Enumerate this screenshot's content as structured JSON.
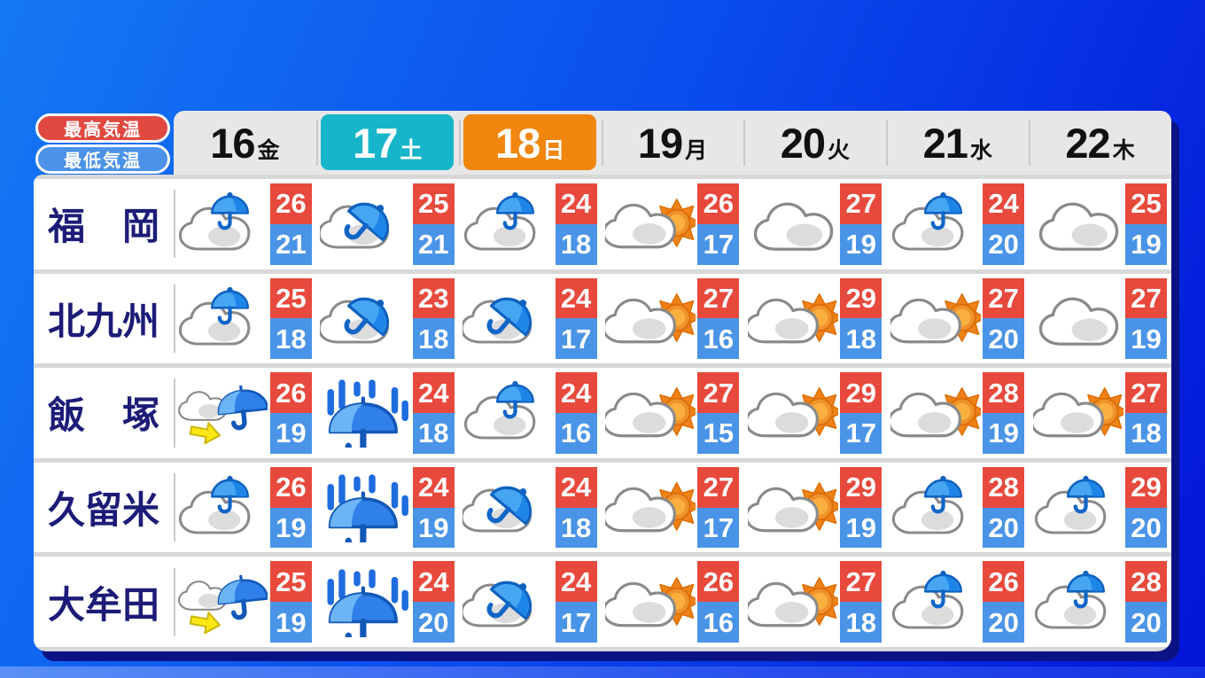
{
  "legend": {
    "high_label": "最高気温",
    "low_label": "最低気温"
  },
  "colors": {
    "high_temp_bg": "#e8493d",
    "low_temp_bg": "#4a94e8",
    "saturday_highlight": "#17b5c9",
    "sunday_highlight": "#f0860e",
    "city_text": "#1c1c78",
    "header_bg": "#e7e7e7",
    "background_top_left": "#1478f4",
    "background_right": "#0314d8",
    "card_shadow": "#0b1286"
  },
  "chart_data": {
    "type": "table",
    "columns": [
      {
        "date": "16",
        "weekday": "金",
        "highlight": "none"
      },
      {
        "date": "17",
        "weekday": "土",
        "highlight": "teal"
      },
      {
        "date": "18",
        "weekday": "日",
        "highlight": "orange"
      },
      {
        "date": "19",
        "weekday": "月",
        "highlight": "none"
      },
      {
        "date": "20",
        "weekday": "火",
        "highlight": "none"
      },
      {
        "date": "21",
        "weekday": "水",
        "highlight": "none"
      },
      {
        "date": "22",
        "weekday": "木",
        "highlight": "none"
      }
    ],
    "icon_names": {
      "cloud": "cloudy",
      "cloud-sun": "cloudy with sunny breaks",
      "cloud-umbrella": "cloudy with occasional rain",
      "cloud-umbrella-tilt": "cloudy with rain",
      "rain": "rain",
      "cloud-then-rain": "cloudy then rain"
    },
    "rows": [
      {
        "city": "福　岡",
        "cells": [
          {
            "icon": "cloud-umbrella",
            "high": 26,
            "low": 21
          },
          {
            "icon": "cloud-umbrella-tilt",
            "high": 25,
            "low": 21
          },
          {
            "icon": "cloud-umbrella",
            "high": 24,
            "low": 18
          },
          {
            "icon": "cloud-sun",
            "high": 26,
            "low": 17
          },
          {
            "icon": "cloud",
            "high": 27,
            "low": 19
          },
          {
            "icon": "cloud-umbrella",
            "high": 24,
            "low": 20
          },
          {
            "icon": "cloud",
            "high": 25,
            "low": 19
          }
        ]
      },
      {
        "city": "北九州",
        "cells": [
          {
            "icon": "cloud-umbrella",
            "high": 25,
            "low": 18
          },
          {
            "icon": "cloud-umbrella-tilt",
            "high": 23,
            "low": 18
          },
          {
            "icon": "cloud-umbrella-tilt",
            "high": 24,
            "low": 17
          },
          {
            "icon": "cloud-sun",
            "high": 27,
            "low": 16
          },
          {
            "icon": "cloud-sun",
            "high": 29,
            "low": 18
          },
          {
            "icon": "cloud-sun",
            "high": 27,
            "low": 20
          },
          {
            "icon": "cloud",
            "high": 27,
            "low": 19
          }
        ]
      },
      {
        "city": "飯　塚",
        "cells": [
          {
            "icon": "cloud-then-rain",
            "high": 26,
            "low": 19
          },
          {
            "icon": "rain",
            "high": 24,
            "low": 18
          },
          {
            "icon": "cloud-umbrella",
            "high": 24,
            "low": 16
          },
          {
            "icon": "cloud-sun",
            "high": 27,
            "low": 15
          },
          {
            "icon": "cloud-sun",
            "high": 29,
            "low": 17
          },
          {
            "icon": "cloud-sun",
            "high": 28,
            "low": 19
          },
          {
            "icon": "cloud-sun",
            "high": 27,
            "low": 18
          }
        ]
      },
      {
        "city": "久留米",
        "cells": [
          {
            "icon": "cloud-umbrella",
            "high": 26,
            "low": 19
          },
          {
            "icon": "rain",
            "high": 24,
            "low": 19
          },
          {
            "icon": "cloud-umbrella-tilt",
            "high": 24,
            "low": 18
          },
          {
            "icon": "cloud-sun",
            "high": 27,
            "low": 17
          },
          {
            "icon": "cloud-sun",
            "high": 29,
            "low": 19
          },
          {
            "icon": "cloud-umbrella",
            "high": 28,
            "low": 20
          },
          {
            "icon": "cloud-umbrella",
            "high": 29,
            "low": 20
          }
        ]
      },
      {
        "city": "大牟田",
        "cells": [
          {
            "icon": "cloud-then-rain",
            "high": 25,
            "low": 19
          },
          {
            "icon": "rain",
            "high": 24,
            "low": 20
          },
          {
            "icon": "cloud-umbrella-tilt",
            "high": 24,
            "low": 17
          },
          {
            "icon": "cloud-sun",
            "high": 26,
            "low": 16
          },
          {
            "icon": "cloud-sun",
            "high": 27,
            "low": 18
          },
          {
            "icon": "cloud-umbrella",
            "high": 26,
            "low": 20
          },
          {
            "icon": "cloud-umbrella",
            "high": 28,
            "low": 20
          }
        ]
      }
    ]
  }
}
